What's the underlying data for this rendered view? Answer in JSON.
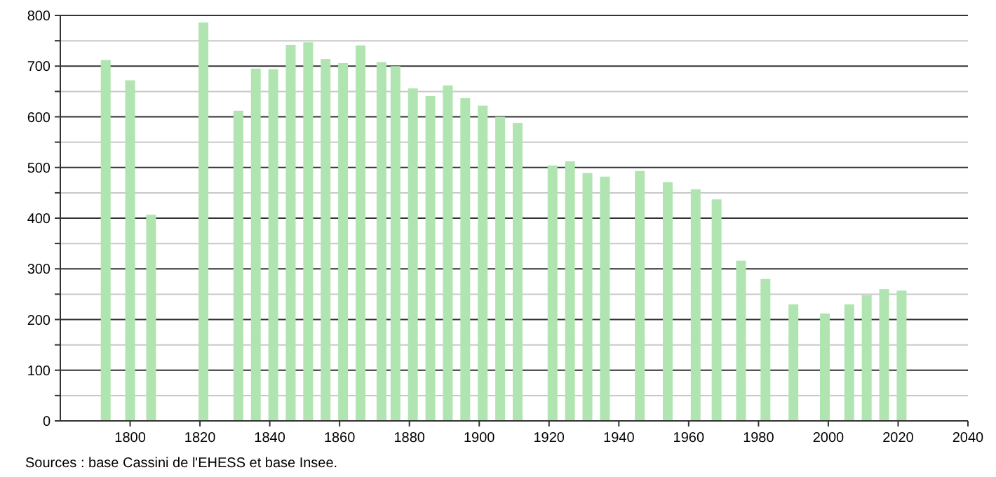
{
  "chart_data": {
    "type": "bar",
    "x": [
      1793,
      1800,
      1806,
      1821,
      1831,
      1836,
      1841,
      1846,
      1851,
      1856,
      1861,
      1866,
      1872,
      1876,
      1881,
      1886,
      1891,
      1896,
      1901,
      1906,
      1911,
      1921,
      1926,
      1931,
      1936,
      1946,
      1954,
      1962,
      1968,
      1975,
      1982,
      1990,
      1999,
      2006,
      2011,
      2016,
      2021
    ],
    "values": [
      712,
      672,
      407,
      786,
      612,
      695,
      694,
      742,
      747,
      714,
      706,
      741,
      708,
      700,
      656,
      641,
      662,
      637,
      622,
      600,
      588,
      504,
      512,
      489,
      482,
      493,
      471,
      457,
      437,
      316,
      280,
      230,
      212,
      230,
      248,
      260,
      257
    ],
    "color": "#b0e4b0",
    "xlim": [
      1780,
      2040
    ],
    "xticks": [
      1800,
      1820,
      1840,
      1860,
      1880,
      1900,
      1920,
      1940,
      1960,
      1980,
      2000,
      2020,
      2040
    ],
    "ylim": [
      0,
      800
    ],
    "yticks": [
      0,
      {
        "value": 50,
        "label": null
      },
      100,
      {
        "value": 150,
        "label": null
      },
      200,
      {
        "value": 250,
        "label": null
      },
      300,
      {
        "value": 350,
        "label": null
      },
      400,
      {
        "value": 450,
        "label": null
      },
      500,
      {
        "value": 550,
        "label": null
      },
      600,
      {
        "value": 650,
        "label": null
      },
      700,
      {
        "value": 750,
        "label": null
      },
      800
    ],
    "grid": true,
    "annotations": [
      "Sources : base Cassini de l'EHESS et base Insee."
    ]
  }
}
